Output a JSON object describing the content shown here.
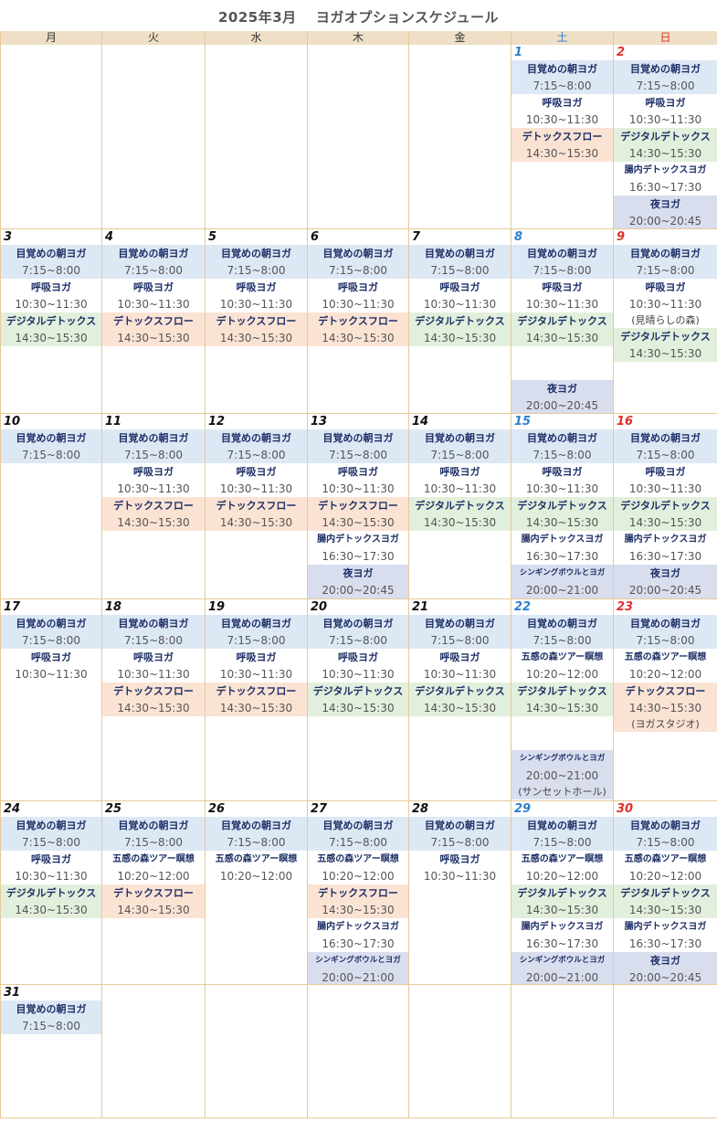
{
  "title": "2025年3月　 ヨガオプションスケジュール",
  "weekdays": [
    "月",
    "火",
    "水",
    "木",
    "金",
    "土",
    "日"
  ],
  "colors": {
    "header_bg": "#eedfc6",
    "saturday": "#2d7fd0",
    "sunday": "#e0312d",
    "grid_line": "#e6c99a"
  },
  "weeks": [
    [
      {
        "day": "",
        "events": []
      },
      {
        "day": "",
        "events": []
      },
      {
        "day": "",
        "events": []
      },
      {
        "day": "",
        "events": []
      },
      {
        "day": "",
        "events": []
      },
      {
        "day": "1",
        "events": [
          {
            "name": "目覚めの朝ヨガ",
            "time": "7:15~8:00",
            "color": "blue"
          },
          {
            "name": "呼吸ヨガ",
            "time": "10:30~11:30",
            "color": "white"
          },
          {
            "name": "デトックスフロー",
            "time": "14:30~15:30",
            "color": "orange"
          }
        ]
      },
      {
        "day": "2",
        "events": [
          {
            "name": "目覚めの朝ヨガ",
            "time": "7:15~8:00",
            "color": "blue"
          },
          {
            "name": "呼吸ヨガ",
            "time": "10:30~11:30",
            "color": "white"
          },
          {
            "name": "デジタルデトックス",
            "time": "14:30~15:30",
            "color": "green"
          },
          {
            "name": "腸内デトックスヨガ",
            "time": "16:30~17:30",
            "color": "white",
            "size": "small"
          },
          {
            "name": "夜ヨガ",
            "time": "20:00~20:45",
            "color": "purple"
          }
        ]
      }
    ],
    [
      {
        "day": "3",
        "events": [
          {
            "name": "目覚めの朝ヨガ",
            "time": "7:15~8:00",
            "color": "blue"
          },
          {
            "name": "呼吸ヨガ",
            "time": "10:30~11:30",
            "color": "white"
          },
          {
            "name": "デジタルデトックス",
            "time": "14:30~15:30",
            "color": "green"
          }
        ]
      },
      {
        "day": "4",
        "events": [
          {
            "name": "目覚めの朝ヨガ",
            "time": "7:15~8:00",
            "color": "blue"
          },
          {
            "name": "呼吸ヨガ",
            "time": "10:30~11:30",
            "color": "white"
          },
          {
            "name": "デトックスフロー",
            "time": "14:30~15:30",
            "color": "orange"
          }
        ]
      },
      {
        "day": "5",
        "events": [
          {
            "name": "目覚めの朝ヨガ",
            "time": "7:15~8:00",
            "color": "blue"
          },
          {
            "name": "呼吸ヨガ",
            "time": "10:30~11:30",
            "color": "white"
          },
          {
            "name": "デトックスフロー",
            "time": "14:30~15:30",
            "color": "orange"
          }
        ]
      },
      {
        "day": "6",
        "events": [
          {
            "name": "目覚めの朝ヨガ",
            "time": "7:15~8:00",
            "color": "blue"
          },
          {
            "name": "呼吸ヨガ",
            "time": "10:30~11:30",
            "color": "white"
          },
          {
            "name": "デトックスフロー",
            "time": "14:30~15:30",
            "color": "orange"
          }
        ]
      },
      {
        "day": "7",
        "events": [
          {
            "name": "目覚めの朝ヨガ",
            "time": "7:15~8:00",
            "color": "blue"
          },
          {
            "name": "呼吸ヨガ",
            "time": "10:30~11:30",
            "color": "white"
          },
          {
            "name": "デジタルデトックス",
            "time": "14:30~15:30",
            "color": "green"
          }
        ]
      },
      {
        "day": "8",
        "events": [
          {
            "name": "目覚めの朝ヨガ",
            "time": "7:15~8:00",
            "color": "blue"
          },
          {
            "name": "呼吸ヨガ",
            "time": "10:30~11:30",
            "color": "white"
          },
          {
            "name": "デジタルデトックス",
            "time": "14:30~15:30",
            "color": "green"
          },
          {
            "gap": 2
          },
          {
            "name": "夜ヨガ",
            "time": "20:00~20:45",
            "color": "purple"
          }
        ]
      },
      {
        "day": "9",
        "events": [
          {
            "name": "目覚めの朝ヨガ",
            "time": "7:15~8:00",
            "color": "blue"
          },
          {
            "name": "呼吸ヨガ",
            "time": "10:30~11:30",
            "color": "white",
            "note": "(見晴らしの森)"
          },
          {
            "name": "デジタルデトックス",
            "time": "14:30~15:30",
            "color": "green"
          }
        ]
      }
    ],
    [
      {
        "day": "10",
        "events": [
          {
            "name": "目覚めの朝ヨガ",
            "time": "7:15~8:00",
            "color": "blue"
          }
        ]
      },
      {
        "day": "11",
        "events": [
          {
            "name": "目覚めの朝ヨガ",
            "time": "7:15~8:00",
            "color": "blue"
          },
          {
            "name": "呼吸ヨガ",
            "time": "10:30~11:30",
            "color": "white"
          },
          {
            "name": "デトックスフロー",
            "time": "14:30~15:30",
            "color": "orange"
          }
        ]
      },
      {
        "day": "12",
        "events": [
          {
            "name": "目覚めの朝ヨガ",
            "time": "7:15~8:00",
            "color": "blue"
          },
          {
            "name": "呼吸ヨガ",
            "time": "10:30~11:30",
            "color": "white"
          },
          {
            "name": "デトックスフロー",
            "time": "14:30~15:30",
            "color": "orange"
          }
        ]
      },
      {
        "day": "13",
        "events": [
          {
            "name": "目覚めの朝ヨガ",
            "time": "7:15~8:00",
            "color": "blue"
          },
          {
            "name": "呼吸ヨガ",
            "time": "10:30~11:30",
            "color": "white"
          },
          {
            "name": "デトックスフロー",
            "time": "14:30~15:30",
            "color": "orange"
          },
          {
            "name": "腸内デトックスヨガ",
            "time": "16:30~17:30",
            "color": "white",
            "size": "small"
          },
          {
            "name": "夜ヨガ",
            "time": "20:00~20:45",
            "color": "purple"
          }
        ]
      },
      {
        "day": "14",
        "events": [
          {
            "name": "目覚めの朝ヨガ",
            "time": "7:15~8:00",
            "color": "blue"
          },
          {
            "name": "呼吸ヨガ",
            "time": "10:30~11:30",
            "color": "white"
          },
          {
            "name": "デジタルデトックス",
            "time": "14:30~15:30",
            "color": "green"
          }
        ]
      },
      {
        "day": "15",
        "events": [
          {
            "name": "目覚めの朝ヨガ",
            "time": "7:15~8:00",
            "color": "blue"
          },
          {
            "name": "呼吸ヨガ",
            "time": "10:30~11:30",
            "color": "white"
          },
          {
            "name": "デジタルデトックス",
            "time": "14:30~15:30",
            "color": "green"
          },
          {
            "name": "腸内デトックスヨガ",
            "time": "16:30~17:30",
            "color": "white",
            "size": "small"
          },
          {
            "name": "シンギングボウルとヨガ",
            "time": "20:00~21:00",
            "color": "purple",
            "size": "tiny"
          }
        ]
      },
      {
        "day": "16",
        "events": [
          {
            "name": "目覚めの朝ヨガ",
            "time": "7:15~8:00",
            "color": "blue"
          },
          {
            "name": "呼吸ヨガ",
            "time": "10:30~11:30",
            "color": "white"
          },
          {
            "name": "デジタルデトックス",
            "time": "14:30~15:30",
            "color": "green"
          },
          {
            "name": "腸内デトックスヨガ",
            "time": "16:30~17:30",
            "color": "white",
            "size": "small"
          },
          {
            "name": "夜ヨガ",
            "time": "20:00~20:45",
            "color": "purple"
          }
        ]
      }
    ],
    [
      {
        "day": "17",
        "events": [
          {
            "name": "目覚めの朝ヨガ",
            "time": "7:15~8:00",
            "color": "blue"
          },
          {
            "name": "呼吸ヨガ",
            "time": "10:30~11:30",
            "color": "white"
          }
        ]
      },
      {
        "day": "18",
        "events": [
          {
            "name": "目覚めの朝ヨガ",
            "time": "7:15~8:00",
            "color": "blue"
          },
          {
            "name": "呼吸ヨガ",
            "time": "10:30~11:30",
            "color": "white"
          },
          {
            "name": "デトックスフロー",
            "time": "14:30~15:30",
            "color": "orange"
          }
        ]
      },
      {
        "day": "19",
        "events": [
          {
            "name": "目覚めの朝ヨガ",
            "time": "7:15~8:00",
            "color": "blue"
          },
          {
            "name": "呼吸ヨガ",
            "time": "10:30~11:30",
            "color": "white"
          },
          {
            "name": "デトックスフロー",
            "time": "14:30~15:30",
            "color": "orange"
          }
        ]
      },
      {
        "day": "20",
        "events": [
          {
            "name": "目覚めの朝ヨガ",
            "time": "7:15~8:00",
            "color": "blue"
          },
          {
            "name": "呼吸ヨガ",
            "time": "10:30~11:30",
            "color": "white"
          },
          {
            "name": "デジタルデトックス",
            "time": "14:30~15:30",
            "color": "green"
          }
        ]
      },
      {
        "day": "21",
        "events": [
          {
            "name": "目覚めの朝ヨガ",
            "time": "7:15~8:00",
            "color": "blue"
          },
          {
            "name": "呼吸ヨガ",
            "time": "10:30~11:30",
            "color": "white"
          },
          {
            "name": "デジタルデトックス",
            "time": "14:30~15:30",
            "color": "green"
          }
        ]
      },
      {
        "day": "22",
        "events": [
          {
            "name": "目覚めの朝ヨガ",
            "time": "7:15~8:00",
            "color": "blue"
          },
          {
            "name": "五感の森ツアー瞑想",
            "time": "10:20~12:00",
            "color": "white",
            "size": "small"
          },
          {
            "name": "デジタルデトックス",
            "time": "14:30~15:30",
            "color": "green"
          },
          {
            "gap": 2
          },
          {
            "name": "シンギングボウルとヨガ",
            "time": "20:00~21:00",
            "color": "purple",
            "size": "tiny",
            "note": "(サンセットホール)"
          }
        ]
      },
      {
        "day": "23",
        "events": [
          {
            "name": "目覚めの朝ヨガ",
            "time": "7:15~8:00",
            "color": "blue"
          },
          {
            "name": "五感の森ツアー瞑想",
            "time": "10:20~12:00",
            "color": "white",
            "size": "small"
          },
          {
            "name": "デトックスフロー",
            "time": "14:30~15:30",
            "color": "orange",
            "note": "(ヨガスタジオ)"
          }
        ]
      }
    ],
    [
      {
        "day": "24",
        "events": [
          {
            "name": "目覚めの朝ヨガ",
            "time": "7:15~8:00",
            "color": "blue"
          },
          {
            "name": "呼吸ヨガ",
            "time": "10:30~11:30",
            "color": "white"
          },
          {
            "name": "デジタルデトックス",
            "time": "14:30~15:30",
            "color": "green"
          }
        ]
      },
      {
        "day": "25",
        "events": [
          {
            "name": "目覚めの朝ヨガ",
            "time": "7:15~8:00",
            "color": "blue"
          },
          {
            "name": "五感の森ツアー瞑想",
            "time": "10:20~12:00",
            "color": "white",
            "size": "small"
          },
          {
            "name": "デトックスフロー",
            "time": "14:30~15:30",
            "color": "orange"
          }
        ]
      },
      {
        "day": "26",
        "events": [
          {
            "name": "目覚めの朝ヨガ",
            "time": "7:15~8:00",
            "color": "blue"
          },
          {
            "name": "五感の森ツアー瞑想",
            "time": "10:20~12:00",
            "color": "white",
            "size": "small"
          }
        ]
      },
      {
        "day": "27",
        "events": [
          {
            "name": "目覚めの朝ヨガ",
            "time": "7:15~8:00",
            "color": "blue"
          },
          {
            "name": "五感の森ツアー瞑想",
            "time": "10:20~12:00",
            "color": "white",
            "size": "small"
          },
          {
            "name": "デトックスフロー",
            "time": "14:30~15:30",
            "color": "orange"
          },
          {
            "name": "腸内デトックスヨガ",
            "time": "16:30~17:30",
            "color": "white",
            "size": "small"
          },
          {
            "name": "シンギングボウルとヨガ",
            "time": "20:00~21:00",
            "color": "purple",
            "size": "tiny"
          }
        ]
      },
      {
        "day": "28",
        "events": [
          {
            "name": "目覚めの朝ヨガ",
            "time": "7:15~8:00",
            "color": "blue"
          },
          {
            "name": "呼吸ヨガ",
            "time": "10:30~11:30",
            "color": "white"
          }
        ]
      },
      {
        "day": "29",
        "events": [
          {
            "name": "目覚めの朝ヨガ",
            "time": "7:15~8:00",
            "color": "blue"
          },
          {
            "name": "五感の森ツアー瞑想",
            "time": "10:20~12:00",
            "color": "white",
            "size": "small"
          },
          {
            "name": "デジタルデトックス",
            "time": "14:30~15:30",
            "color": "green"
          },
          {
            "name": "腸内デトックスヨガ",
            "time": "16:30~17:30",
            "color": "white",
            "size": "small"
          },
          {
            "name": "シンギングボウルとヨガ",
            "time": "20:00~21:00",
            "color": "purple",
            "size": "tiny"
          }
        ]
      },
      {
        "day": "30",
        "events": [
          {
            "name": "目覚めの朝ヨガ",
            "time": "7:15~8:00",
            "color": "blue"
          },
          {
            "name": "五感の森ツアー瞑想",
            "time": "10:20~12:00",
            "color": "white",
            "size": "small"
          },
          {
            "name": "デジタルデトックス",
            "time": "14:30~15:30",
            "color": "green"
          },
          {
            "name": "腸内デトックスヨガ",
            "time": "16:30~17:30",
            "color": "white",
            "size": "small"
          },
          {
            "name": "夜ヨガ",
            "time": "20:00~20:45",
            "color": "purple"
          }
        ]
      }
    ],
    [
      {
        "day": "31",
        "events": [
          {
            "name": "目覚めの朝ヨガ",
            "time": "7:15~8:00",
            "color": "blue"
          }
        ]
      },
      {
        "day": "",
        "events": []
      },
      {
        "day": "",
        "events": []
      },
      {
        "day": "",
        "events": []
      },
      {
        "day": "",
        "events": []
      },
      {
        "day": "",
        "events": []
      },
      {
        "day": "",
        "events": []
      }
    ]
  ]
}
